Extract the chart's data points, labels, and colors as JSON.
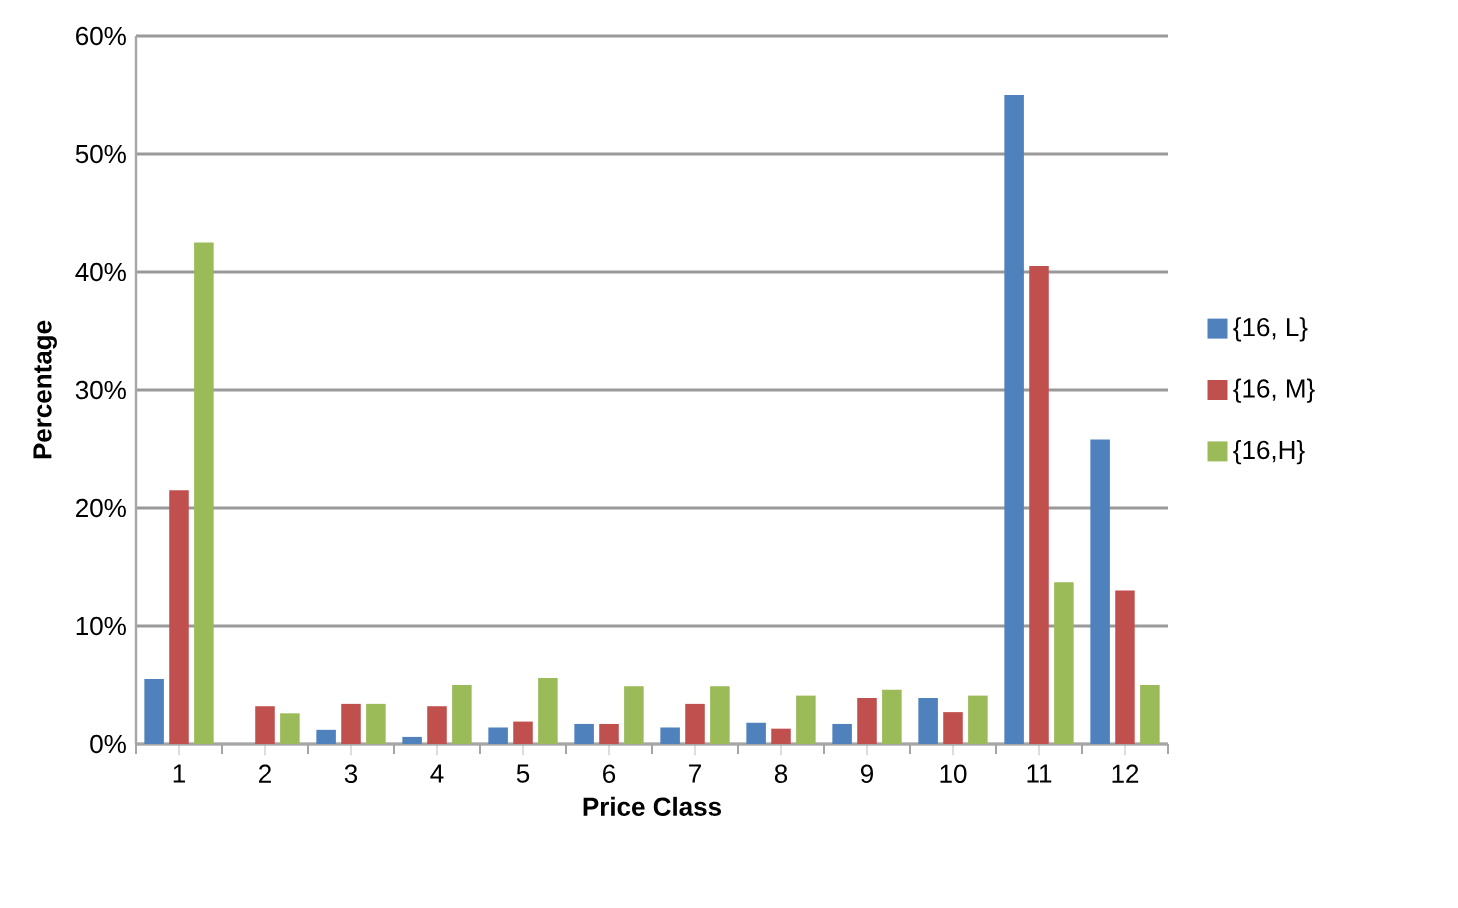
{
  "chart_data": {
    "type": "bar",
    "xlabel": "Price Class",
    "ylabel": "Percentage",
    "categories": [
      "1",
      "2",
      "3",
      "4",
      "5",
      "6",
      "7",
      "8",
      "9",
      "10",
      "11",
      "12"
    ],
    "series": [
      {
        "name": "{16, L}",
        "color": "#4f81bd",
        "values": [
          5.5,
          0,
          1.2,
          0.6,
          1.4,
          1.7,
          1.4,
          1.8,
          1.7,
          3.9,
          55,
          25.8
        ]
      },
      {
        "name": "{16, M}",
        "color": "#c0504d",
        "values": [
          21.5,
          3.2,
          3.4,
          3.2,
          1.9,
          1.7,
          3.4,
          1.3,
          3.9,
          2.7,
          40.5,
          13
        ]
      },
      {
        "name": "{16,H}",
        "color": "#9bbb59",
        "values": [
          42.5,
          2.6,
          3.4,
          5.0,
          5.6,
          4.9,
          4.9,
          4.1,
          4.6,
          4.1,
          13.7,
          5.0
        ]
      }
    ],
    "ylim": [
      0,
      60
    ],
    "yticks": [
      {
        "value": 0,
        "label": "0%"
      },
      {
        "value": 10,
        "label": "10%"
      },
      {
        "value": 20,
        "label": "20%"
      },
      {
        "value": 30,
        "label": "30%"
      },
      {
        "value": 40,
        "label": "40%"
      },
      {
        "value": 50,
        "label": "50%"
      },
      {
        "value": 60,
        "label": "60%"
      }
    ],
    "grid": "y",
    "legend": "right"
  }
}
